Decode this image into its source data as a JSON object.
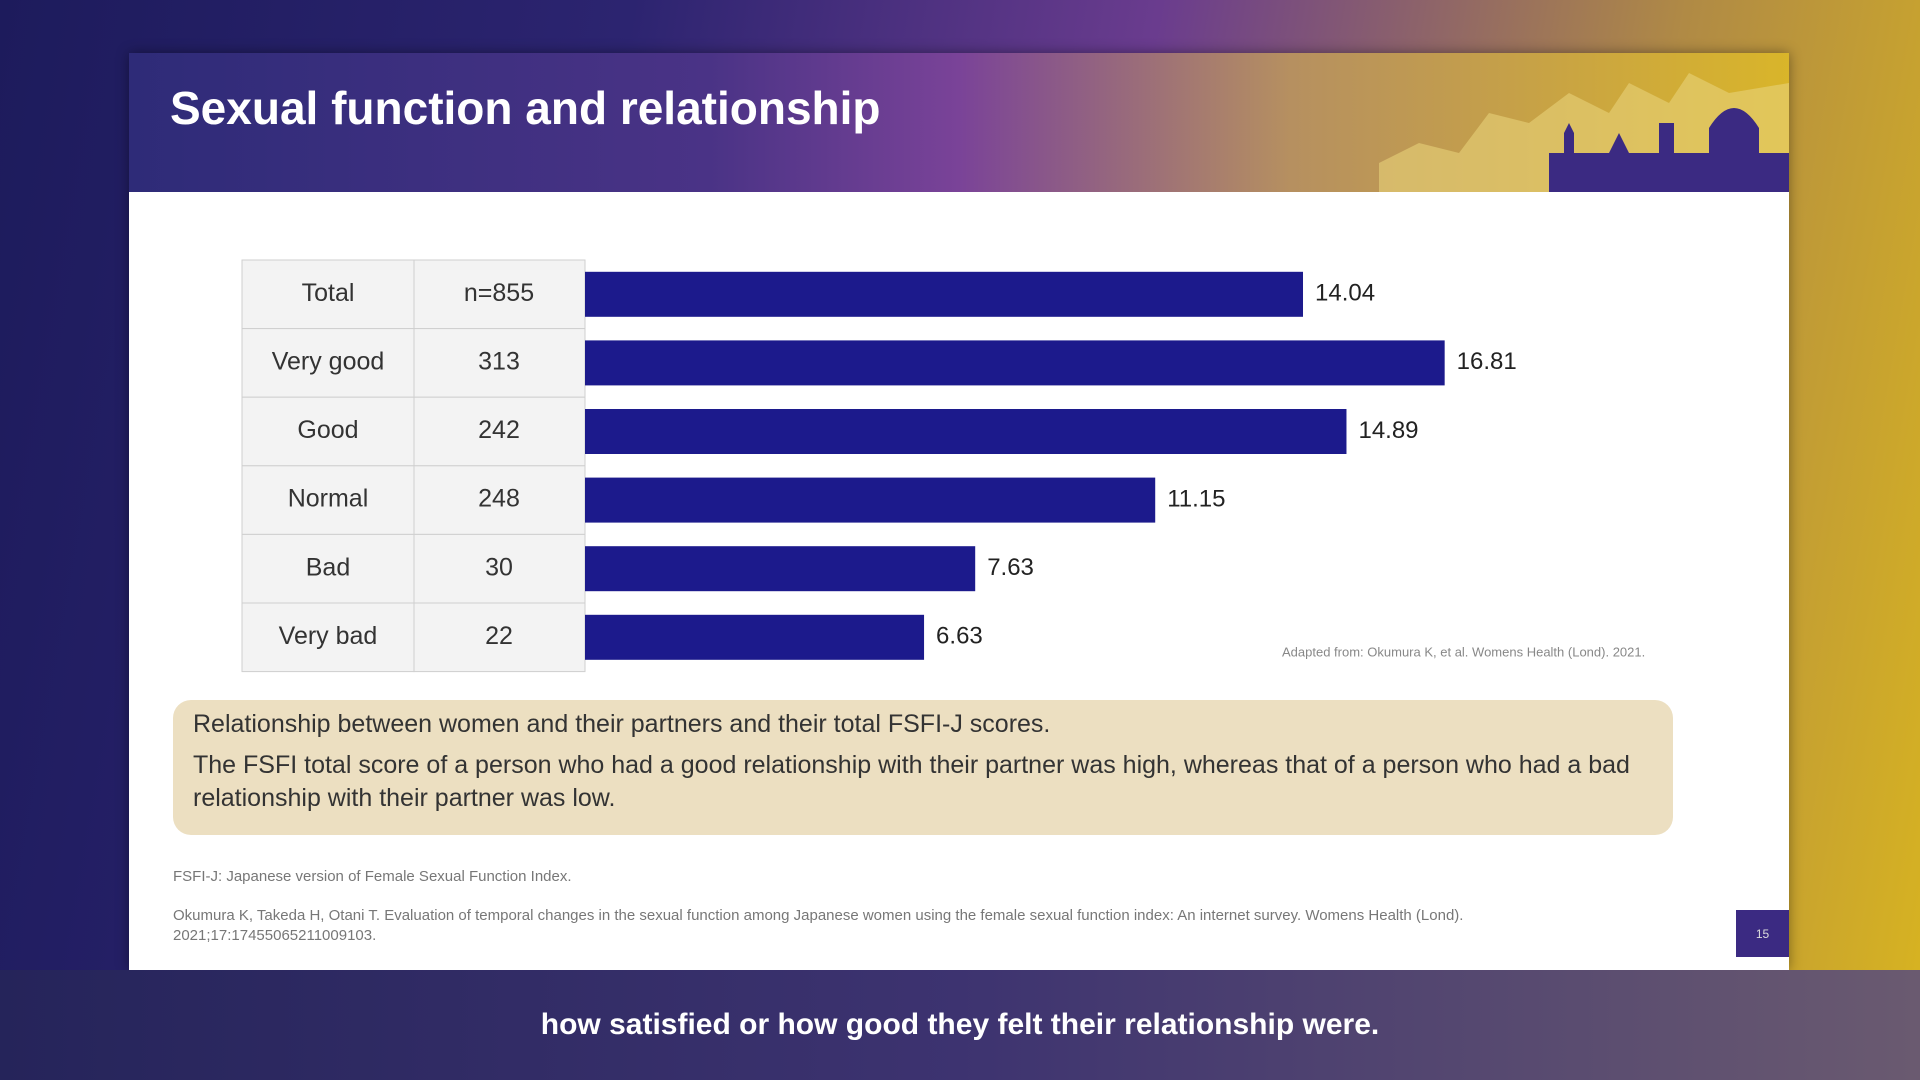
{
  "slide": {
    "title": "Sexual function and relationship",
    "callout": [
      "Relationship between women and their partners and their total FSFI-J scores.",
      "The FSFI total score of a person who had a good relationship with their partner was high, whereas that of a person who had a bad relationship with their partner was low."
    ],
    "footnote": "FSFI-J: Japanese version of Female Sexual Function Index.",
    "reference": "Okumura K, Takeda H, Otani T. Evaluation of temporal changes in the sexual function among Japanese women using the female sexual function index: An internet survey. Womens Health (Lond). 2021;17:17455065211009103.",
    "page_number": "15"
  },
  "chart_data": {
    "type": "bar",
    "orientation": "horizontal",
    "categories": [
      "Total",
      "Very good",
      "Good",
      "Normal",
      "Bad",
      "Very bad"
    ],
    "counts": [
      "n=855",
      "313",
      "242",
      "248",
      "30",
      "22"
    ],
    "values": [
      14.04,
      16.81,
      14.89,
      11.15,
      7.63,
      6.63
    ],
    "color": "#1c1a8c",
    "source": "Adapted from: Okumura K, et al. Womens Health (Lond). 2021."
  },
  "caption": "how satisfied or how good they felt their relationship were."
}
